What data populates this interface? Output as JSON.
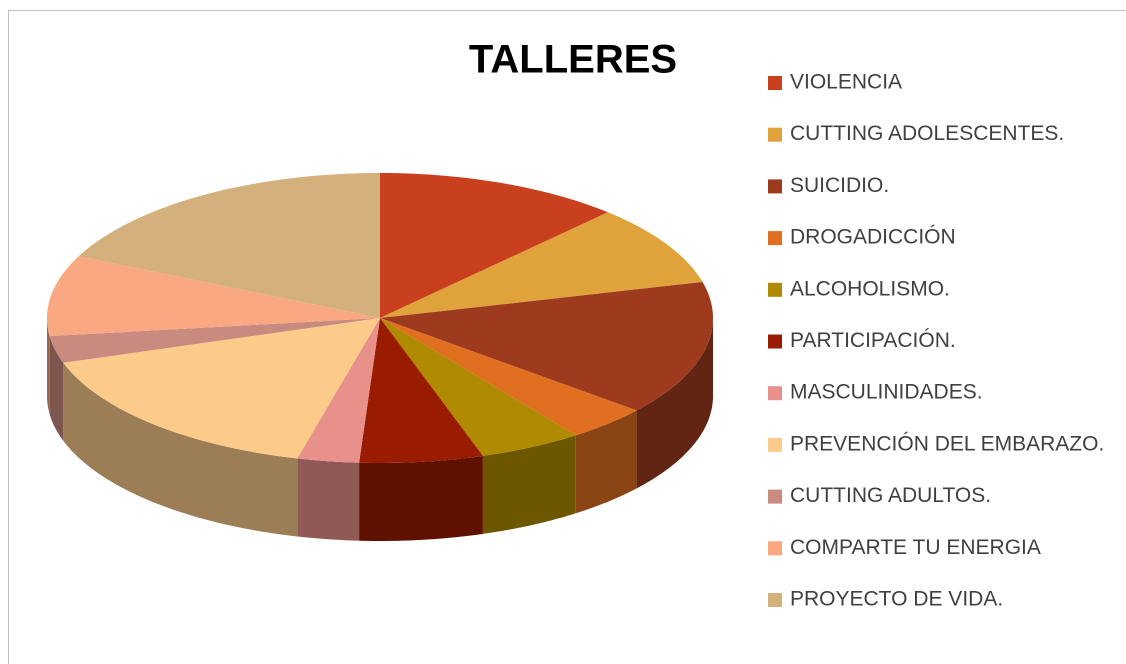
{
  "chart_data": {
    "type": "pie",
    "title": "TALLERES",
    "categories": [
      "VIOLENCIA",
      "CUTTING ADOLESCENTES.",
      "SUICIDIO.",
      "DROGADICCIÓN",
      "ALCOHOLISMO.",
      "PARTICIPACIÓN.",
      "MASCULINIDADES.",
      "PREVENCIÓN DEL EMBARAZO.",
      "CUTTING ADULTOS.",
      "COMPARTE TU ENERGIA",
      "PROYECTO DE VIDA."
    ],
    "values": [
      12,
      9,
      15,
      4,
      5,
      6,
      3,
      16,
      3,
      9,
      18
    ],
    "colors": [
      "#c9401f",
      "#e0a23b",
      "#9e3b1f",
      "#e07020",
      "#b08a00",
      "#9a1c00",
      "#e8908a",
      "#fccb8a",
      "#c98a80",
      "#f9a882",
      "#d4b07d"
    ],
    "legend": "right"
  }
}
